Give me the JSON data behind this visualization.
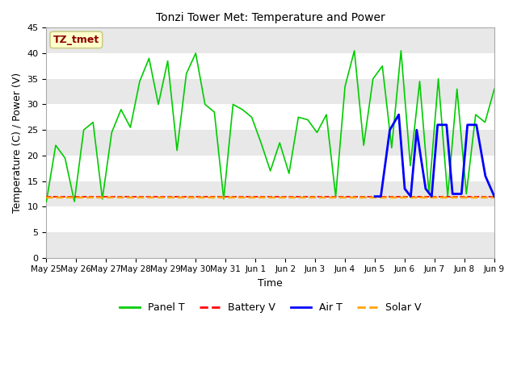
{
  "title": "Tonzi Tower Met: Temperature and Power",
  "xlabel": "Time",
  "ylabel": "Temperature (C) / Power (V)",
  "ylim": [
    0,
    45
  ],
  "yticks": [
    0,
    5,
    10,
    15,
    20,
    25,
    30,
    35,
    40,
    45
  ],
  "annotation_text": "TZ_tmet",
  "annotation_color": "#8B0000",
  "annotation_bg": "#FFFFCC",
  "annotation_border": "#CCCC88",
  "bg_color": "#FFFFFF",
  "plot_bg": "#FFFFFF",
  "band_color1": "#E8E8E8",
  "band_color2": "#FFFFFF",
  "panel_T_color": "#00CC00",
  "battery_V_color": "#FF0000",
  "air_T_color": "#0000FF",
  "solar_V_color": "#FFA500",
  "line_width": 1.2,
  "xtick_labels": [
    "May 25",
    "May 26",
    "May 27",
    "May 28",
    "May 29",
    "May 30",
    "May 31",
    "Jun 1",
    "Jun 2",
    "Jun 3",
    "Jun 4",
    "Jun 5",
    "Jun 6",
    "Jun 7",
    "Jun 8",
    "Jun 9"
  ],
  "panel_T": [
    11.0,
    22.0,
    19.5,
    11.0,
    25.0,
    26.5,
    11.5,
    24.5,
    29.0,
    25.5,
    34.5,
    39.0,
    30.0,
    38.5,
    21.0,
    36.0,
    40.0,
    30.0,
    28.5,
    11.5,
    30.0,
    29.0,
    27.5,
    22.5,
    17.0,
    22.5,
    16.5,
    27.5,
    27.0,
    24.5,
    28.0,
    12.0,
    33.5,
    40.5,
    22.0,
    35.0,
    37.5,
    21.5,
    40.5,
    18.0,
    34.5,
    12.5,
    35.0,
    12.0,
    33.0,
    12.5,
    28.0,
    26.5,
    33.0
  ],
  "battery_V": [
    12.0,
    12.0,
    12.0,
    12.0,
    12.0,
    12.0,
    12.0,
    12.0,
    12.0,
    12.0,
    12.0,
    12.0,
    12.0,
    12.0,
    12.0,
    12.0,
    12.0,
    12.0,
    12.0,
    12.0,
    12.0,
    12.0,
    12.0,
    12.0,
    12.0,
    12.0,
    12.0,
    12.0,
    12.0,
    12.0,
    12.0,
    12.0,
    12.0,
    12.0,
    12.0,
    12.0,
    12.0,
    12.0,
    12.0,
    12.0,
    12.0,
    12.0,
    12.0,
    12.0,
    12.0,
    12.0,
    12.0,
    12.0,
    12.0
  ],
  "solar_V": [
    11.8,
    11.8,
    11.8,
    11.8,
    11.8,
    11.8,
    11.8,
    11.8,
    11.8,
    11.8,
    11.8,
    11.8,
    11.8,
    11.8,
    11.8,
    11.8,
    11.8,
    11.8,
    11.8,
    11.8,
    11.8,
    11.8,
    11.8,
    11.8,
    11.8,
    11.8,
    11.8,
    11.8,
    11.8,
    11.8,
    11.8,
    11.8,
    11.8,
    11.8,
    11.8,
    11.8,
    11.8,
    11.8,
    11.8,
    11.8,
    11.8,
    11.8,
    11.8,
    11.8,
    11.8,
    11.8,
    11.8,
    11.8,
    11.8
  ],
  "air_T_x_indices": [
    11,
    11.2,
    11.5,
    11.8,
    12.0,
    12.2,
    12.4,
    12.7,
    12.9,
    13.1,
    13.4,
    13.6,
    13.9,
    14.1,
    14.4,
    14.7,
    15.0
  ],
  "air_T_y": [
    12.0,
    12.0,
    25.0,
    28.0,
    13.5,
    12.0,
    25.0,
    13.5,
    12.0,
    26.0,
    26.0,
    12.5,
    12.5,
    26.0,
    26.0,
    16.0,
    12.0
  ],
  "legend_labels": [
    "Panel T",
    "Battery V",
    "Air T",
    "Solar V"
  ],
  "legend_colors": [
    "#00CC00",
    "#FF0000",
    "#0000FF",
    "#FFA500"
  ],
  "legend_styles": [
    "solid",
    "dashed",
    "solid",
    "dashed"
  ]
}
